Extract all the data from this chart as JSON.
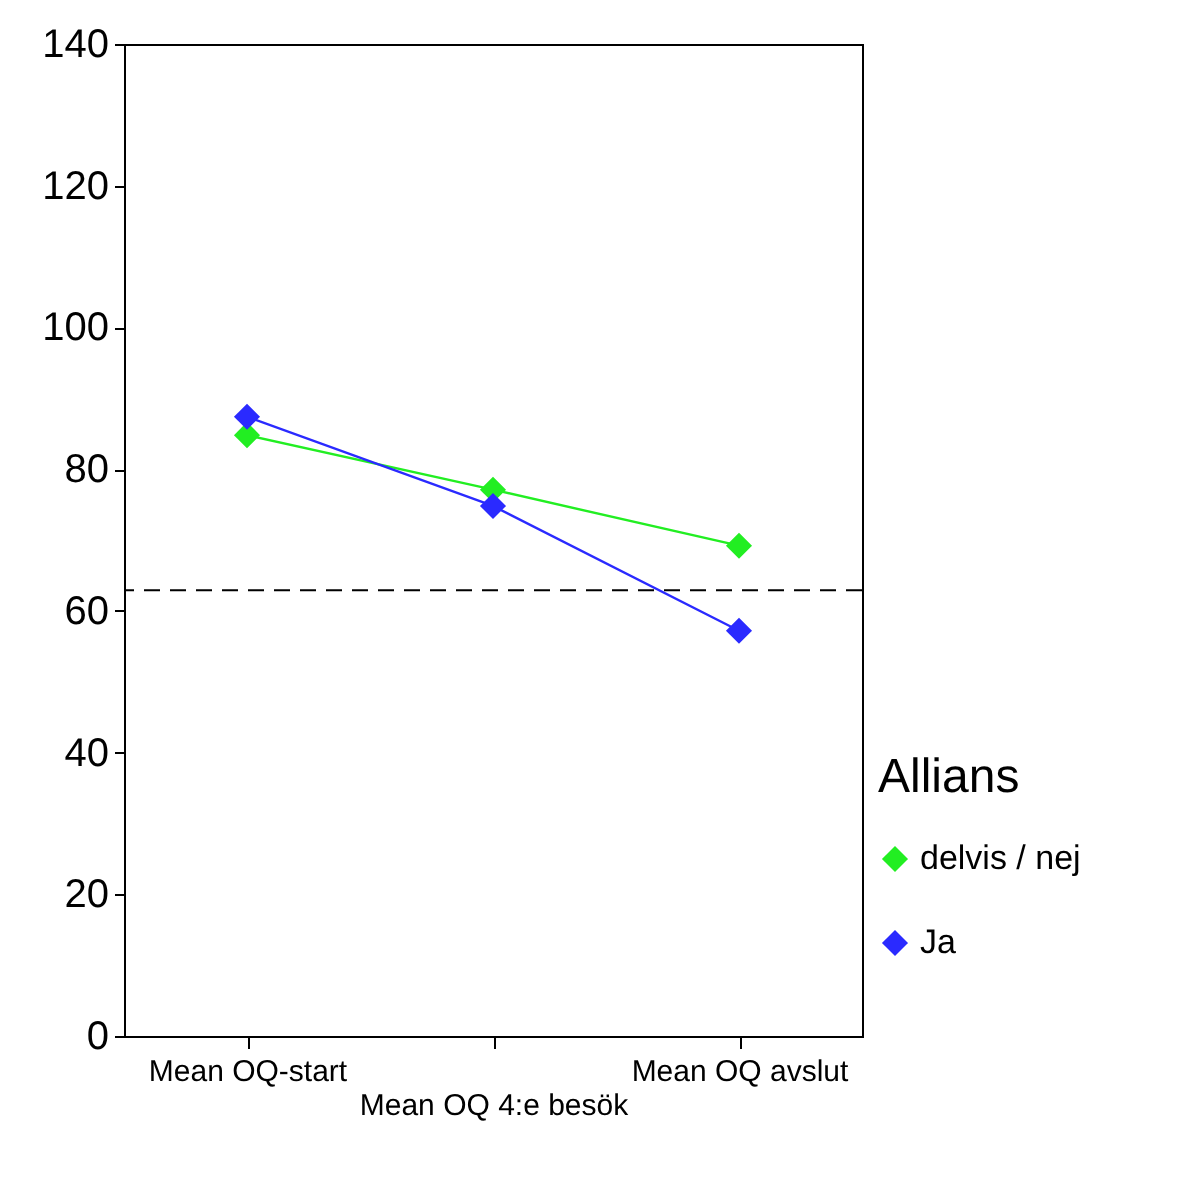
{
  "chart_data": {
    "type": "line",
    "categories": [
      "Mean OQ-start",
      "Mean OQ 4:e besök",
      "Mean OQ avslut"
    ],
    "series": [
      {
        "name": "delvis / nej",
        "color": "#22ee22",
        "values": [
          84.8,
          77.1,
          69.2
        ]
      },
      {
        "name": "Ja",
        "color": "#2a2aff",
        "values": [
          87.4,
          74.8,
          57.2
        ]
      }
    ],
    "ylim": [
      0,
      140
    ],
    "yticks": [
      0,
      20,
      40,
      60,
      80,
      100,
      120,
      140
    ],
    "ref_lines": [
      {
        "axis": "y",
        "value": 62.9,
        "line_style": "dashed",
        "color": "#000000"
      }
    ],
    "legend_title": "Allians",
    "legend": "right",
    "marker": "diamond",
    "line_style": "solid",
    "grid": false
  }
}
